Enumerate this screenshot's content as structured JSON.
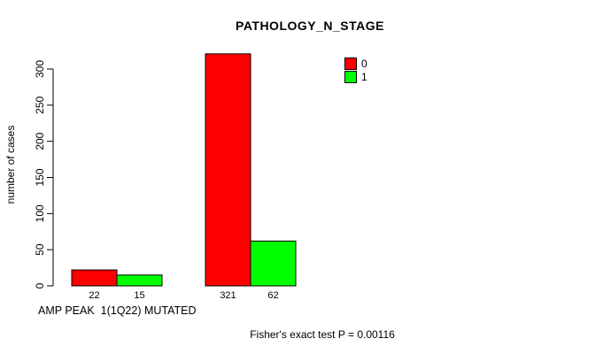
{
  "chart": {
    "title": "PATHOLOGY_N_STAGE",
    "ylabel": "number of cases",
    "xlabel": "AMP PEAK  1(1Q22) MUTATED",
    "annotation": "Fisher's exact test P = 0.00116"
  },
  "colors": {
    "series_0": "#ff0000",
    "series_1": "#00ff00",
    "axis": "#000000",
    "background": "#ffffff"
  },
  "chart_data": {
    "type": "bar",
    "title": "PATHOLOGY_N_STAGE",
    "xlabel": "AMP PEAK  1(1Q22) MUTATED",
    "ylabel": "number of cases",
    "categories": [
      "",
      ""
    ],
    "series": [
      {
        "name": "0",
        "color": "#ff0000",
        "values": [
          22,
          321
        ]
      },
      {
        "name": "1",
        "color": "#00ff00",
        "values": [
          15,
          62
        ]
      }
    ],
    "bar_value_labels": [
      [
        "22",
        "15"
      ],
      [
        "321",
        "62"
      ]
    ],
    "yticks": [
      0,
      50,
      100,
      150,
      200,
      250,
      300
    ],
    "ylim": [
      0,
      300
    ],
    "grid": false,
    "legend_position": "top-right",
    "annotation": "Fisher's exact test P = 0.00116"
  }
}
